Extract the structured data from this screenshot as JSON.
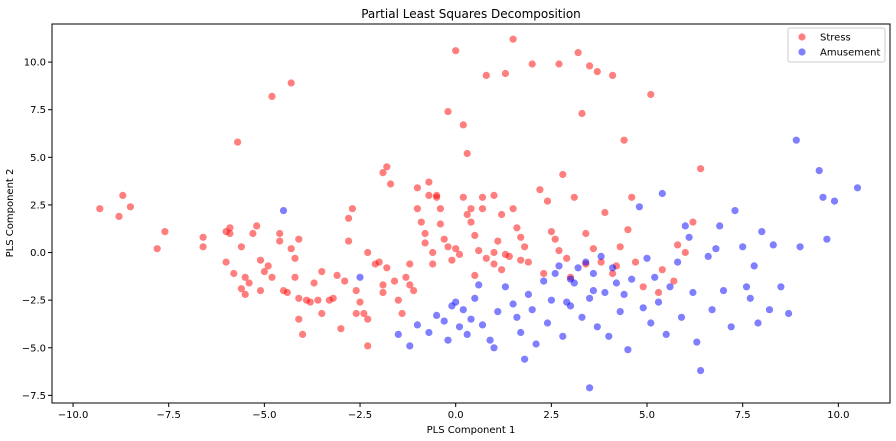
{
  "chart_data": {
    "type": "scatter",
    "title": "Partial Least Squares Decomposition",
    "xlabel": "PLS Component 1",
    "ylabel": "PLS Component 2",
    "xlim": [
      -10.55,
      11.35
    ],
    "ylim": [
      -7.9,
      12.0
    ],
    "xticks": [
      -10.0,
      -7.5,
      -5.0,
      -2.5,
      0.0,
      2.5,
      5.0,
      7.5,
      10.0
    ],
    "yticks": [
      -7.5,
      -5.0,
      -2.5,
      0.0,
      2.5,
      5.0,
      7.5,
      10.0
    ],
    "xtick_labels": [
      "−10.0",
      "−7.5",
      "−5.0",
      "−2.5",
      "0.0",
      "2.5",
      "5.0",
      "7.5",
      "10.0"
    ],
    "ytick_labels": [
      "−7.5",
      "−5.0",
      "−2.5",
      "0.0",
      "2.5",
      "5.0",
      "7.5",
      "10.0"
    ],
    "grid": false,
    "legend_position": "top-right",
    "series": [
      {
        "name": "Stress",
        "color": "#ff0000",
        "points": [
          [
            -9.3,
            2.3
          ],
          [
            -8.8,
            1.9
          ],
          [
            -8.7,
            3.0
          ],
          [
            -8.5,
            2.4
          ],
          [
            -7.8,
            0.2
          ],
          [
            -7.6,
            1.1
          ],
          [
            -6.6,
            0.8
          ],
          [
            -6.6,
            0.3
          ],
          [
            -6.0,
            -0.5
          ],
          [
            -6.0,
            1.1
          ],
          [
            -5.9,
            1.3
          ],
          [
            -5.9,
            1.0
          ],
          [
            -5.8,
            -1.1
          ],
          [
            -5.7,
            5.8
          ],
          [
            -5.6,
            0.3
          ],
          [
            -5.6,
            -1.9
          ],
          [
            -5.5,
            -2.2
          ],
          [
            -5.5,
            -1.3
          ],
          [
            -5.4,
            -1.6
          ],
          [
            -5.3,
            1.0
          ],
          [
            -5.2,
            1.4
          ],
          [
            -5.1,
            -2.0
          ],
          [
            -5.1,
            -0.4
          ],
          [
            -5.0,
            -1.0
          ],
          [
            -4.9,
            -0.7
          ],
          [
            -4.8,
            8.2
          ],
          [
            -4.8,
            -1.3
          ],
          [
            -4.6,
            1.0
          ],
          [
            -4.6,
            0.6
          ],
          [
            -4.5,
            -2.0
          ],
          [
            -4.4,
            -2.1
          ],
          [
            -4.3,
            8.9
          ],
          [
            -4.3,
            0.2
          ],
          [
            -4.2,
            -0.3
          ],
          [
            -4.2,
            -1.3
          ],
          [
            -4.1,
            -2.4
          ],
          [
            -4.1,
            0.7
          ],
          [
            -4.1,
            -3.5
          ],
          [
            -4.0,
            -4.3
          ],
          [
            -3.9,
            -2.5
          ],
          [
            -3.8,
            -2.6
          ],
          [
            -3.7,
            -1.6
          ],
          [
            -3.6,
            -2.5
          ],
          [
            -3.5,
            -3.2
          ],
          [
            -3.5,
            -1.0
          ],
          [
            -3.3,
            -2.5
          ],
          [
            -3.2,
            -2.4
          ],
          [
            -3.1,
            -1.2
          ],
          [
            -3.0,
            -4.0
          ],
          [
            -2.9,
            -1.5
          ],
          [
            -2.8,
            0.6
          ],
          [
            -2.8,
            1.8
          ],
          [
            -2.7,
            2.3
          ],
          [
            -2.6,
            -2.0
          ],
          [
            -2.6,
            -3.2
          ],
          [
            -2.5,
            -2.6
          ],
          [
            -2.4,
            -3.2
          ],
          [
            -2.3,
            0.0
          ],
          [
            -2.3,
            -3.5
          ],
          [
            -2.3,
            -4.9
          ],
          [
            -2.1,
            -0.6
          ],
          [
            -2.0,
            -0.5
          ],
          [
            -1.9,
            -1.7
          ],
          [
            -1.9,
            -2.1
          ],
          [
            -1.8,
            -0.8
          ],
          [
            -1.6,
            -1.5
          ],
          [
            -1.5,
            -2.5
          ],
          [
            -1.4,
            -3.2
          ],
          [
            -1.3,
            -1.3
          ],
          [
            -1.2,
            -0.6
          ],
          [
            -1.2,
            -1.7
          ],
          [
            -1.1,
            -2.0
          ],
          [
            -1.0,
            3.4
          ],
          [
            -1.0,
            2.3
          ],
          [
            -0.9,
            1.6
          ],
          [
            -0.8,
            1.0
          ],
          [
            -0.8,
            0.5
          ],
          [
            -0.7,
            3.0
          ],
          [
            -0.6,
            -0.6
          ],
          [
            -0.6,
            0.0
          ],
          [
            -0.5,
            2.9
          ],
          [
            -0.4,
            1.5
          ],
          [
            -0.3,
            0.7
          ],
          [
            -0.2,
            7.4
          ],
          [
            -0.2,
            0.3
          ],
          [
            -0.1,
            -0.4
          ],
          [
            0.0,
            10.6
          ],
          [
            0.0,
            0.2
          ],
          [
            0.1,
            -0.1
          ],
          [
            0.2,
            6.7
          ],
          [
            0.3,
            5.2
          ],
          [
            0.3,
            2.0
          ],
          [
            0.4,
            1.6
          ],
          [
            0.5,
            0.9
          ],
          [
            0.5,
            -1.2
          ],
          [
            0.6,
            0.1
          ],
          [
            0.7,
            2.3
          ],
          [
            0.8,
            -0.3
          ],
          [
            0.8,
            9.3
          ],
          [
            1.0,
            -0.6
          ],
          [
            1.0,
            3.0
          ],
          [
            1.1,
            0.6
          ],
          [
            1.2,
            2.0
          ],
          [
            1.2,
            -0.9
          ],
          [
            1.3,
            9.4
          ],
          [
            1.4,
            -0.2
          ],
          [
            1.5,
            11.2
          ],
          [
            1.5,
            2.3
          ],
          [
            1.6,
            1.3
          ],
          [
            1.7,
            0.8
          ],
          [
            1.7,
            -0.4
          ],
          [
            1.9,
            -0.5
          ],
          [
            2.0,
            9.9
          ],
          [
            2.2,
            3.3
          ],
          [
            2.3,
            -1.1
          ],
          [
            2.4,
            2.7
          ],
          [
            2.5,
            1.1
          ],
          [
            2.6,
            0.7
          ],
          [
            2.7,
            0.1
          ],
          [
            2.7,
            9.9
          ],
          [
            2.8,
            4.1
          ],
          [
            2.9,
            -0.3
          ],
          [
            3.0,
            -1.3
          ],
          [
            3.1,
            2.9
          ],
          [
            3.2,
            10.5
          ],
          [
            3.3,
            7.3
          ],
          [
            3.4,
            1.0
          ],
          [
            3.4,
            -0.6
          ],
          [
            3.5,
            9.8
          ],
          [
            3.6,
            0.2
          ],
          [
            3.7,
            9.5
          ],
          [
            3.8,
            -0.5
          ],
          [
            3.9,
            2.1
          ],
          [
            4.1,
            -1.1
          ],
          [
            4.1,
            9.3
          ],
          [
            4.2,
            -0.7
          ],
          [
            4.3,
            0.3
          ],
          [
            4.4,
            5.9
          ],
          [
            4.5,
            1.2
          ],
          [
            4.6,
            2.9
          ],
          [
            4.7,
            -0.5
          ],
          [
            4.9,
            -1.8
          ],
          [
            5.1,
            8.3
          ],
          [
            5.3,
            -2.1
          ],
          [
            5.4,
            -0.9
          ],
          [
            5.7,
            -1.5
          ],
          [
            5.8,
            0.4
          ],
          [
            6.0,
            0.0
          ],
          [
            6.2,
            1.6
          ],
          [
            6.4,
            4.4
          ],
          [
            -1.9,
            4.2
          ],
          [
            -1.7,
            3.6
          ],
          [
            -1.8,
            4.5
          ],
          [
            -0.7,
            3.7
          ],
          [
            -0.5,
            3.0
          ],
          [
            -0.4,
            2.3
          ],
          [
            0.2,
            2.9
          ],
          [
            0.4,
            2.3
          ],
          [
            0.7,
            2.9
          ],
          [
            1.0,
            0.0
          ],
          [
            1.3,
            -0.1
          ],
          [
            1.8,
            0.3
          ]
        ]
      },
      {
        "name": "Amusement",
        "color": "#0000ff",
        "points": [
          [
            -4.5,
            2.2
          ],
          [
            -2.5,
            -1.3
          ],
          [
            -1.5,
            -4.3
          ],
          [
            -1.2,
            -4.9
          ],
          [
            -1.0,
            -3.8
          ],
          [
            -0.7,
            -4.2
          ],
          [
            -0.5,
            -3.3
          ],
          [
            -0.3,
            -3.6
          ],
          [
            -0.2,
            -4.6
          ],
          [
            -0.1,
            -2.8
          ],
          [
            0.0,
            -2.6
          ],
          [
            0.1,
            -3.9
          ],
          [
            0.2,
            -3.0
          ],
          [
            0.3,
            -4.3
          ],
          [
            0.4,
            -3.5
          ],
          [
            0.5,
            -2.4
          ],
          [
            0.6,
            -1.7
          ],
          [
            0.7,
            -3.8
          ],
          [
            0.9,
            -4.6
          ],
          [
            1.0,
            -5.0
          ],
          [
            1.1,
            -3.1
          ],
          [
            1.3,
            -1.8
          ],
          [
            1.5,
            -2.7
          ],
          [
            1.6,
            -3.4
          ],
          [
            1.7,
            -4.2
          ],
          [
            1.8,
            -5.6
          ],
          [
            1.9,
            -2.2
          ],
          [
            2.0,
            -3.0
          ],
          [
            2.1,
            -4.8
          ],
          [
            2.3,
            -1.5
          ],
          [
            2.4,
            -3.7
          ],
          [
            2.5,
            -2.5
          ],
          [
            2.6,
            -1.1
          ],
          [
            2.7,
            -0.7
          ],
          [
            2.8,
            -4.4
          ],
          [
            3.0,
            -2.8
          ],
          [
            3.1,
            -1.6
          ],
          [
            3.3,
            -3.4
          ],
          [
            3.4,
            -0.5
          ],
          [
            3.5,
            -2.4
          ],
          [
            3.6,
            -1.1
          ],
          [
            3.7,
            -3.9
          ],
          [
            3.8,
            -0.2
          ],
          [
            3.9,
            -2.1
          ],
          [
            4.0,
            -4.4
          ],
          [
            4.1,
            -0.8
          ],
          [
            4.2,
            -1.6
          ],
          [
            4.3,
            -3.1
          ],
          [
            4.4,
            -2.2
          ],
          [
            4.5,
            -5.1
          ],
          [
            4.6,
            -1.4
          ],
          [
            4.8,
            2.4
          ],
          [
            4.9,
            -2.9
          ],
          [
            5.0,
            -0.3
          ],
          [
            5.1,
            -3.7
          ],
          [
            5.2,
            -1.3
          ],
          [
            5.3,
            -2.6
          ],
          [
            5.4,
            3.1
          ],
          [
            5.5,
            -4.3
          ],
          [
            5.6,
            -1.8
          ],
          [
            5.8,
            -0.5
          ],
          [
            5.9,
            -3.4
          ],
          [
            6.0,
            1.4
          ],
          [
            6.1,
            0.8
          ],
          [
            6.2,
            -2.1
          ],
          [
            6.3,
            -4.7
          ],
          [
            6.4,
            -6.2
          ],
          [
            6.6,
            -0.2
          ],
          [
            6.7,
            -3.0
          ],
          [
            6.8,
            0.2
          ],
          [
            6.9,
            1.4
          ],
          [
            7.0,
            -2.0
          ],
          [
            7.2,
            -3.9
          ],
          [
            7.3,
            2.2
          ],
          [
            7.5,
            0.3
          ],
          [
            7.6,
            -1.8
          ],
          [
            7.7,
            -2.4
          ],
          [
            7.8,
            -0.7
          ],
          [
            7.9,
            -3.7
          ],
          [
            8.0,
            1.1
          ],
          [
            8.2,
            -3.0
          ],
          [
            8.3,
            0.4
          ],
          [
            8.5,
            -1.8
          ],
          [
            8.7,
            -3.2
          ],
          [
            8.9,
            5.9
          ],
          [
            9.0,
            0.3
          ],
          [
            9.5,
            4.3
          ],
          [
            9.6,
            2.9
          ],
          [
            9.7,
            0.7
          ],
          [
            9.9,
            2.7
          ],
          [
            10.5,
            3.4
          ],
          [
            3.5,
            -7.1
          ],
          [
            2.9,
            -2.6
          ],
          [
            3.0,
            -1.4
          ],
          [
            3.2,
            -0.8
          ],
          [
            3.6,
            -2.0
          ]
        ]
      }
    ]
  }
}
